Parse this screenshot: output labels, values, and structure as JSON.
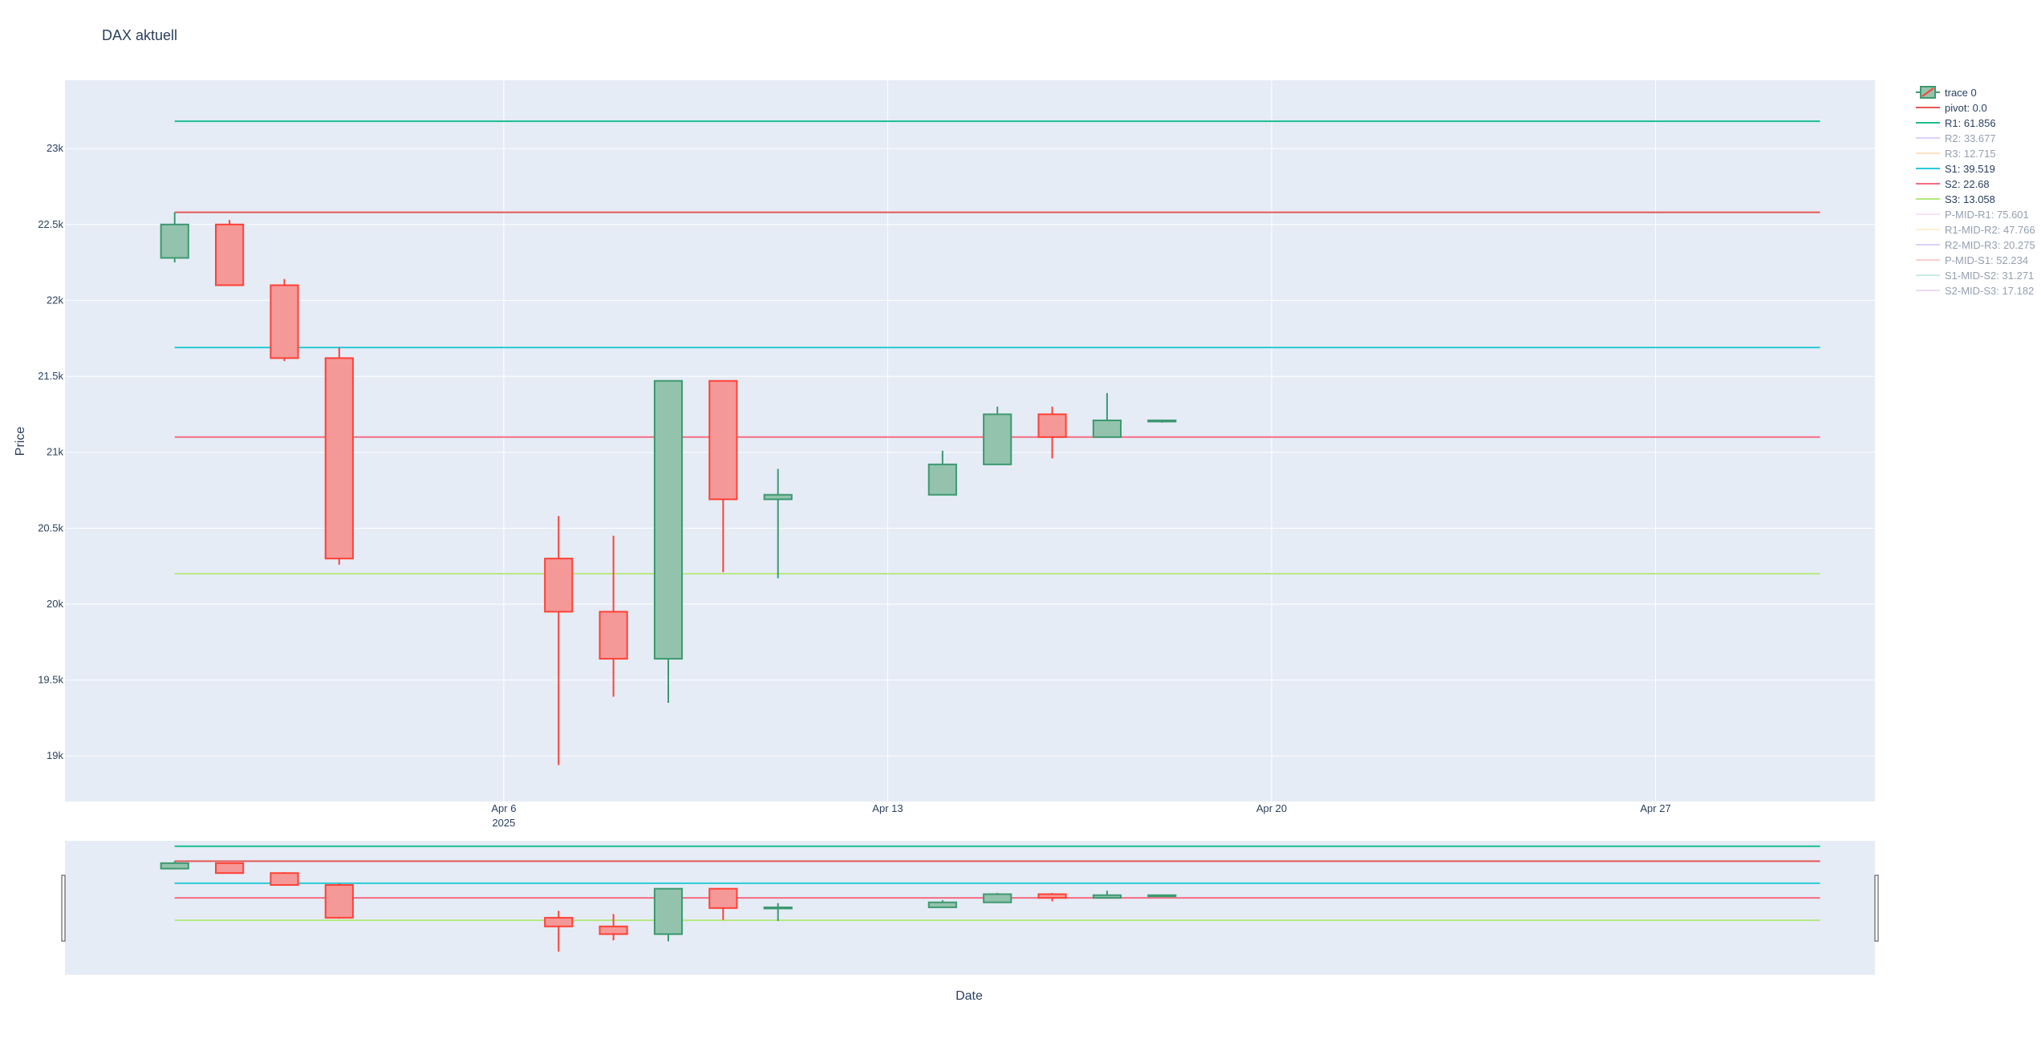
{
  "chart_data": {
    "type": "candlestick",
    "title": "DAX aktuell",
    "xlabel": "Date",
    "ylabel": "Price",
    "x_range": [
      "2025-03-29",
      "2025-05-01"
    ],
    "y_range": [
      18700,
      23450
    ],
    "y_ticks": [
      {
        "value": 19000,
        "label": "19k"
      },
      {
        "value": 19500,
        "label": "19.5k"
      },
      {
        "value": 20000,
        "label": "20k"
      },
      {
        "value": 20500,
        "label": "20.5k"
      },
      {
        "value": 21000,
        "label": "21k"
      },
      {
        "value": 21500,
        "label": "21.5k"
      },
      {
        "value": 22000,
        "label": "22k"
      },
      {
        "value": 22500,
        "label": "22.5k"
      },
      {
        "value": 23000,
        "label": "23k"
      }
    ],
    "x_ticks": [
      {
        "date": "2025-04-06",
        "label": "Apr 6",
        "sublabel": "2025"
      },
      {
        "date": "2025-04-13",
        "label": "Apr 13",
        "sublabel": ""
      },
      {
        "date": "2025-04-20",
        "label": "Apr 20",
        "sublabel": ""
      },
      {
        "date": "2025-04-27",
        "label": "Apr 27",
        "sublabel": ""
      }
    ],
    "grid": true,
    "legend_placement": "top-right",
    "rangeslider": true,
    "colors": {
      "increasing_line": "#3d9970",
      "increasing_fill": "#93c3ad",
      "decreasing_line": "#ff4136",
      "decreasing_fill": "#f59998",
      "plot_bg": "#e5ecf6",
      "grid": "#ffffff",
      "text": "#2a3f5f"
    },
    "candles": [
      {
        "date": "2025-03-31",
        "open": 22280,
        "high": 22580,
        "low": 22250,
        "close": 22500
      },
      {
        "date": "2025-04-01",
        "open": 22500,
        "high": 22530,
        "low": 22100,
        "close": 22100
      },
      {
        "date": "2025-04-02",
        "open": 22100,
        "high": 22140,
        "low": 21600,
        "close": 21620
      },
      {
        "date": "2025-04-03",
        "open": 21620,
        "high": 21690,
        "low": 20260,
        "close": 20300
      },
      {
        "date": "2025-04-07",
        "open": 20300,
        "high": 20580,
        "low": 18940,
        "close": 19950
      },
      {
        "date": "2025-04-08",
        "open": 19950,
        "high": 20450,
        "low": 19390,
        "close": 19640
      },
      {
        "date": "2025-04-09",
        "open": 19640,
        "high": 21470,
        "low": 19350,
        "close": 21470
      },
      {
        "date": "2025-04-10",
        "open": 21470,
        "high": 21470,
        "low": 20210,
        "close": 20690
      },
      {
        "date": "2025-04-11",
        "open": 20690,
        "high": 20890,
        "low": 20170,
        "close": 20720
      },
      {
        "date": "2025-04-14",
        "open": 20720,
        "high": 21010,
        "low": 20720,
        "close": 20920
      },
      {
        "date": "2025-04-15",
        "open": 20920,
        "high": 21300,
        "low": 20920,
        "close": 21250
      },
      {
        "date": "2025-04-16",
        "open": 21250,
        "high": 21300,
        "low": 20960,
        "close": 21100
      },
      {
        "date": "2025-04-17",
        "open": 21100,
        "high": 21390,
        "low": 21100,
        "close": 21210
      },
      {
        "date": "2025-04-18",
        "open": 21205,
        "high": 21215,
        "low": 21195,
        "close": 21210
      }
    ],
    "level_lines": [
      {
        "name": "pivot: 0.0",
        "value": 22580,
        "color": "#e45756",
        "visible": true
      },
      {
        "name": "R1: 61.856",
        "value": 23180,
        "color": "#1cbe8f",
        "visible": true
      },
      {
        "name": "R2: 33.677",
        "value": null,
        "color": "#c0a2f2",
        "visible": false
      },
      {
        "name": "R3: 12.715",
        "value": null,
        "color": "#fcc68a",
        "visible": false
      },
      {
        "name": "S1: 39.519",
        "value": 21690,
        "color": "#2bc9d6",
        "visible": true
      },
      {
        "name": "S2: 22.68",
        "value": 21100,
        "color": "#f56c82",
        "visible": true
      },
      {
        "name": "S3: 13.058",
        "value": 20200,
        "color": "#b6e880",
        "visible": true
      },
      {
        "name": "P-MID-R1: 75.601",
        "value": null,
        "color": "#f4c5f4",
        "visible": false
      },
      {
        "name": "R1-MID-R2: 47.766",
        "value": null,
        "color": "#ffe3a3",
        "visible": false
      },
      {
        "name": "R2-MID-R3: 20.275",
        "value": null,
        "color": "#b6a9ef",
        "visible": false
      },
      {
        "name": "P-MID-S1: 52.234",
        "value": null,
        "color": "#f7a19a",
        "visible": false
      },
      {
        "name": "S1-MID-S2: 31.271",
        "value": null,
        "color": "#94dbc6",
        "visible": false
      },
      {
        "name": "S2-MID-S3: 17.182",
        "value": null,
        "color": "#d9b6f0",
        "visible": false
      }
    ],
    "legend": [
      {
        "name": "trace 0",
        "kind": "candle"
      },
      {
        "name": "pivot: 0.0",
        "kind": "line"
      },
      {
        "name": "R1: 61.856",
        "kind": "line"
      },
      {
        "name": "R2: 33.677",
        "kind": "line"
      },
      {
        "name": "R3: 12.715",
        "kind": "line"
      },
      {
        "name": "S1: 39.519",
        "kind": "line"
      },
      {
        "name": "S2: 22.68",
        "kind": "line"
      },
      {
        "name": "S3: 13.058",
        "kind": "line"
      },
      {
        "name": "P-MID-R1: 75.601",
        "kind": "line"
      },
      {
        "name": "R1-MID-R2: 47.766",
        "kind": "line"
      },
      {
        "name": "R2-MID-R3: 20.275",
        "kind": "line"
      },
      {
        "name": "P-MID-S1: 52.234",
        "kind": "line"
      },
      {
        "name": "S1-MID-S2: 31.271",
        "kind": "line"
      },
      {
        "name": "S2-MID-S3: 17.182",
        "kind": "line"
      }
    ]
  }
}
